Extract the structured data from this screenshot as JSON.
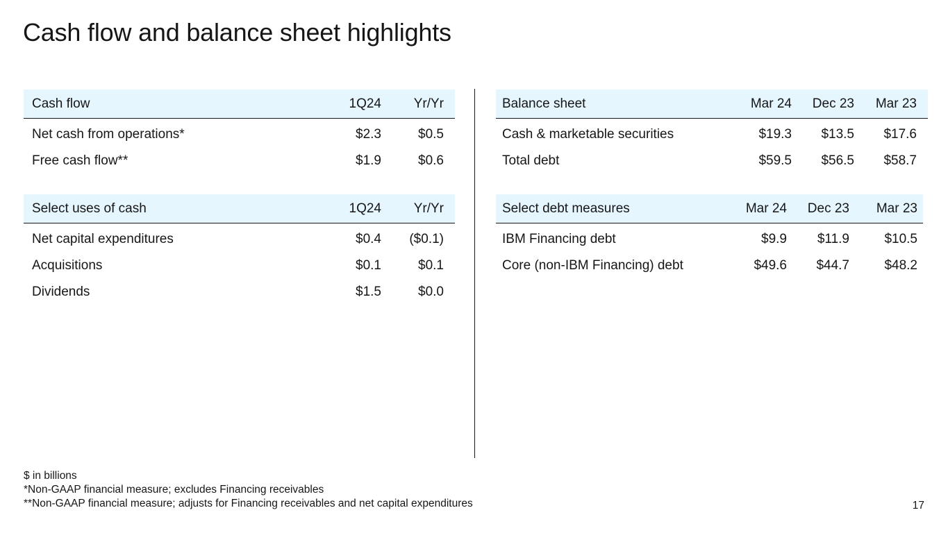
{
  "title": "Cash flow and balance sheet highlights",
  "cash_flow": {
    "headers": [
      "Cash flow",
      "1Q24",
      "Yr/Yr"
    ],
    "rows": [
      [
        "Net cash from operations*",
        "$2.3",
        "$0.5"
      ],
      [
        "Free cash flow**",
        "$1.9",
        "$0.6"
      ]
    ]
  },
  "uses_of_cash": {
    "headers": [
      "Select uses of cash",
      "1Q24",
      "Yr/Yr"
    ],
    "rows": [
      [
        "Net capital expenditures",
        "$0.4",
        "($0.1)"
      ],
      [
        "Acquisitions",
        "$0.1",
        "$0.1"
      ],
      [
        "Dividends",
        "$1.5",
        "$0.0"
      ]
    ]
  },
  "balance_sheet": {
    "headers": [
      "Balance sheet",
      "Mar 24",
      "Dec 23",
      "Mar 23"
    ],
    "rows": [
      [
        "Cash & marketable securities",
        "$19.3",
        "$13.5",
        "$17.6"
      ],
      [
        "Total debt",
        "$59.5",
        "$56.5",
        "$58.7"
      ]
    ]
  },
  "debt_measures": {
    "headers": [
      "Select debt measures",
      "Mar 24",
      "Dec 23",
      "Mar 23"
    ],
    "rows": [
      [
        "IBM Financing debt",
        "$9.9",
        "$11.9",
        "$10.5"
      ],
      [
        "Core (non-IBM Financing) debt",
        "$49.6",
        "$44.7",
        "$48.2"
      ]
    ]
  },
  "footnotes": [
    "$ in billions",
    "*Non-GAAP financial measure; excludes Financing receivables",
    "**Non-GAAP financial measure; adjusts for Financing receivables and net capital expenditures"
  ],
  "page_number": "17"
}
